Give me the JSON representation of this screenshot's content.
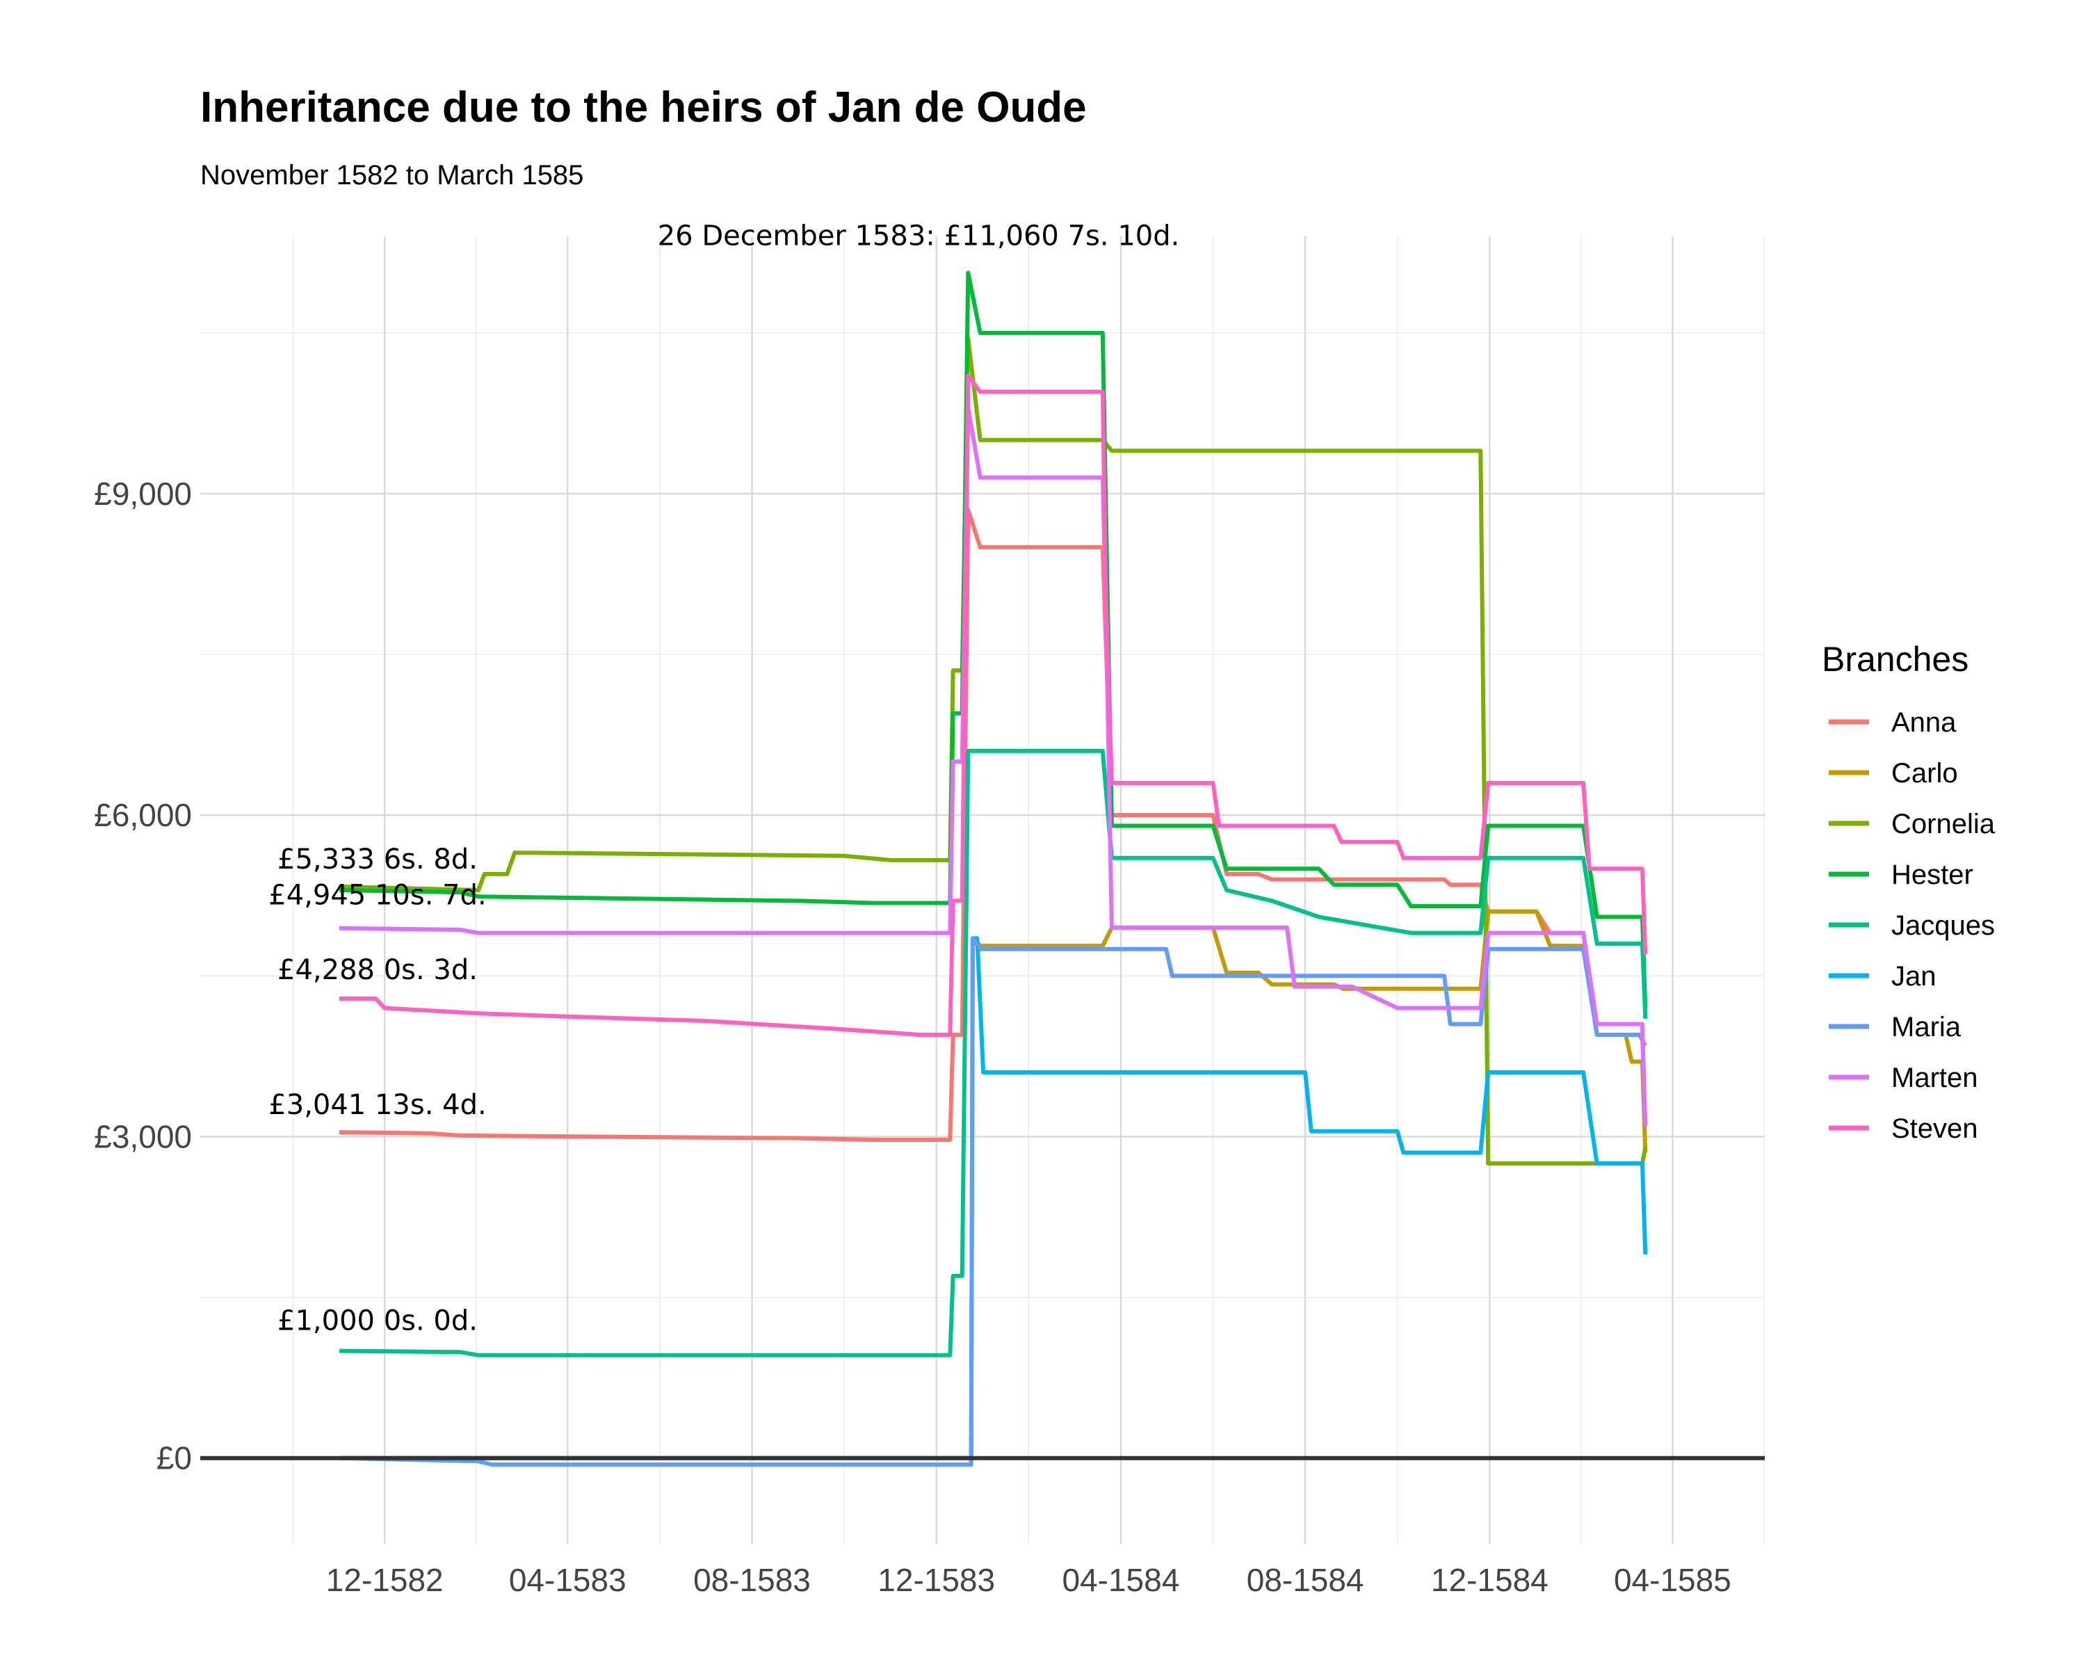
{
  "chart_data": {
    "type": "line",
    "title": "Inheritance due to the heirs of Jan de Oude",
    "subtitle": "November 1582 to March 1585",
    "xlabel": "",
    "ylabel": "",
    "x_type": "date",
    "xlim": [
      "1582-08-01",
      "1585-06-01"
    ],
    "ylim": [
      -800,
      11400
    ],
    "x_ticks": [
      {
        "date": "1582-12-01",
        "label": "12-1582"
      },
      {
        "date": "1583-04-01",
        "label": "04-1583"
      },
      {
        "date": "1583-08-01",
        "label": "08-1583"
      },
      {
        "date": "1583-12-01",
        "label": "12-1583"
      },
      {
        "date": "1584-04-01",
        "label": "04-1584"
      },
      {
        "date": "1584-08-01",
        "label": "08-1584"
      },
      {
        "date": "1584-12-01",
        "label": "12-1584"
      },
      {
        "date": "1585-04-01",
        "label": "04-1585"
      }
    ],
    "y_ticks": [
      {
        "value": 0,
        "label": "£0"
      },
      {
        "value": 3000,
        "label": "£3,000"
      },
      {
        "value": 6000,
        "label": "£6,000"
      },
      {
        "value": 9000,
        "label": "£9,000"
      }
    ],
    "grid": true,
    "zero_line": true,
    "legend": {
      "title": "Branches",
      "position": "right"
    },
    "annotations": [
      {
        "text": "26 December 1583: £11,060 7s. 10d.",
        "date": "1583-12-26",
        "value": 11060
      },
      {
        "text": "£5,333 6s. 8d.",
        "date": "1582-11-01",
        "value": 5333
      },
      {
        "text": "£4,945 10s. 7d.",
        "date": "1582-11-01",
        "value": 4945
      },
      {
        "text": "£4,288 0s. 3d.",
        "date": "1582-11-01",
        "value": 4288
      },
      {
        "text": "£3,041 13s. 4d.",
        "date": "1582-11-01",
        "value": 3041
      },
      {
        "text": "£1,000 0s. 0d.",
        "date": "1582-11-01",
        "value": 1000
      }
    ],
    "series": [
      {
        "name": "Anna",
        "color": "#F8766D",
        "points": [
          [
            "1582-11-01",
            3041
          ],
          [
            "1583-01-01",
            3030
          ],
          [
            "1583-01-20",
            3010
          ],
          [
            "1583-06-01",
            2995
          ],
          [
            "1583-09-01",
            2985
          ],
          [
            "1583-10-20",
            2970
          ],
          [
            "1583-12-10",
            2970
          ],
          [
            "1583-12-12",
            3950
          ],
          [
            "1583-12-18",
            3950
          ],
          [
            "1583-12-22",
            8850
          ],
          [
            "1583-12-30",
            8500
          ],
          [
            "1584-03-20",
            8500
          ],
          [
            "1584-03-26",
            6000
          ],
          [
            "1584-06-01",
            6000
          ],
          [
            "1584-06-10",
            5450
          ],
          [
            "1584-07-01",
            5450
          ],
          [
            "1584-07-10",
            5400
          ],
          [
            "1584-11-01",
            5400
          ],
          [
            "1584-11-05",
            5350
          ],
          [
            "1584-11-25",
            5350
          ],
          [
            "1584-11-30",
            5100
          ],
          [
            "1585-01-01",
            5100
          ],
          [
            "1585-01-10",
            4900
          ],
          [
            "1585-02-01",
            4900
          ],
          [
            "1585-02-10",
            3950
          ],
          [
            "1585-03-10",
            3950
          ],
          [
            "1585-03-14",
            3850
          ]
        ]
      },
      {
        "name": "Carlo",
        "color": "#C49A00",
        "points": [
          [
            "1582-11-01",
            0
          ],
          [
            "1583-12-24",
            0
          ],
          [
            "1583-12-25",
            4850
          ],
          [
            "1583-12-30",
            4780
          ],
          [
            "1584-03-20",
            4780
          ],
          [
            "1584-03-26",
            4950
          ],
          [
            "1584-06-01",
            4950
          ],
          [
            "1584-06-10",
            4530
          ],
          [
            "1584-07-01",
            4530
          ],
          [
            "1584-07-10",
            4420
          ],
          [
            "1584-08-20",
            4420
          ],
          [
            "1584-08-26",
            4380
          ],
          [
            "1584-11-25",
            4380
          ],
          [
            "1584-11-30",
            5100
          ],
          [
            "1585-01-01",
            5100
          ],
          [
            "1585-01-10",
            4780
          ],
          [
            "1585-02-01",
            4780
          ],
          [
            "1585-02-10",
            3950
          ],
          [
            "1585-03-01",
            3950
          ],
          [
            "1585-03-05",
            3700
          ],
          [
            "1585-03-12",
            3700
          ],
          [
            "1585-03-14",
            2850
          ]
        ]
      },
      {
        "name": "Cornelia",
        "color": "#7CAE00",
        "points": [
          [
            "1582-11-01",
            5333
          ],
          [
            "1583-02-01",
            5300
          ],
          [
            "1583-02-05",
            5450
          ],
          [
            "1583-02-20",
            5450
          ],
          [
            "1583-02-25",
            5650
          ],
          [
            "1583-10-01",
            5620
          ],
          [
            "1583-11-01",
            5580
          ],
          [
            "1583-12-10",
            5580
          ],
          [
            "1583-12-12",
            7350
          ],
          [
            "1583-12-18",
            7350
          ],
          [
            "1583-12-22",
            10450
          ],
          [
            "1583-12-30",
            9500
          ],
          [
            "1584-03-20",
            9500
          ],
          [
            "1584-03-26",
            9400
          ],
          [
            "1584-11-25",
            9400
          ],
          [
            "1584-11-30",
            2750
          ],
          [
            "1585-03-12",
            2750
          ],
          [
            "1585-03-14",
            2900
          ]
        ]
      },
      {
        "name": "Hester",
        "color": "#00BA38",
        "points": [
          [
            "1582-11-01",
            5300
          ],
          [
            "1583-01-20",
            5280
          ],
          [
            "1583-02-01",
            5240
          ],
          [
            "1583-09-01",
            5200
          ],
          [
            "1583-10-20",
            5180
          ],
          [
            "1583-12-10",
            5180
          ],
          [
            "1583-12-12",
            6950
          ],
          [
            "1583-12-18",
            6950
          ],
          [
            "1583-12-22",
            11060
          ],
          [
            "1583-12-30",
            10500
          ],
          [
            "1584-03-20",
            10500
          ],
          [
            "1584-03-26",
            5900
          ],
          [
            "1584-06-01",
            5900
          ],
          [
            "1584-06-10",
            5500
          ],
          [
            "1584-08-10",
            5500
          ],
          [
            "1584-08-20",
            5350
          ],
          [
            "1584-10-01",
            5350
          ],
          [
            "1584-10-10",
            5150
          ],
          [
            "1584-11-25",
            5150
          ],
          [
            "1584-11-30",
            5900
          ],
          [
            "1585-02-01",
            5900
          ],
          [
            "1585-02-10",
            5050
          ],
          [
            "1585-03-12",
            5050
          ],
          [
            "1585-03-14",
            4200
          ]
        ]
      },
      {
        "name": "Jacques",
        "color": "#00C08B",
        "points": [
          [
            "1582-11-01",
            1000
          ],
          [
            "1583-01-20",
            990
          ],
          [
            "1583-02-01",
            960
          ],
          [
            "1583-12-10",
            960
          ],
          [
            "1583-12-12",
            1700
          ],
          [
            "1583-12-18",
            1700
          ],
          [
            "1583-12-22",
            6600
          ],
          [
            "1584-03-20",
            6600
          ],
          [
            "1584-03-26",
            5600
          ],
          [
            "1584-06-01",
            5600
          ],
          [
            "1584-06-10",
            5300
          ],
          [
            "1584-07-10",
            5200
          ],
          [
            "1584-08-10",
            5050
          ],
          [
            "1584-10-10",
            4900
          ],
          [
            "1584-11-25",
            4900
          ],
          [
            "1584-11-30",
            5600
          ],
          [
            "1585-02-01",
            5600
          ],
          [
            "1585-02-10",
            4800
          ],
          [
            "1585-03-12",
            4800
          ],
          [
            "1585-03-14",
            4100
          ]
        ]
      },
      {
        "name": "Jan",
        "color": "#00B4EF",
        "points": [
          [
            "1582-11-01",
            0
          ],
          [
            "1583-12-24",
            0
          ],
          [
            "1583-12-25",
            4850
          ],
          [
            "1583-12-28",
            4850
          ],
          [
            "1584-01-01",
            3600
          ],
          [
            "1584-08-01",
            3600
          ],
          [
            "1584-08-05",
            3050
          ],
          [
            "1584-10-01",
            3050
          ],
          [
            "1584-10-05",
            2850
          ],
          [
            "1584-11-25",
            2850
          ],
          [
            "1584-11-30",
            3600
          ],
          [
            "1585-02-01",
            3600
          ],
          [
            "1585-02-10",
            2750
          ],
          [
            "1585-03-12",
            2750
          ],
          [
            "1585-03-14",
            1900
          ]
        ]
      },
      {
        "name": "Maria",
        "color": "#619CFF",
        "points": [
          [
            "1582-11-01",
            0
          ],
          [
            "1583-02-01",
            -30
          ],
          [
            "1583-02-10",
            -60
          ],
          [
            "1583-12-24",
            -60
          ],
          [
            "1583-12-25",
            4850
          ],
          [
            "1583-12-30",
            4750
          ],
          [
            "1584-05-01",
            4750
          ],
          [
            "1584-05-05",
            4500
          ],
          [
            "1584-11-01",
            4500
          ],
          [
            "1584-11-05",
            4050
          ],
          [
            "1584-11-25",
            4050
          ],
          [
            "1584-11-30",
            4750
          ],
          [
            "1585-02-01",
            4750
          ],
          [
            "1585-02-10",
            3950
          ],
          [
            "1585-03-12",
            3950
          ],
          [
            "1585-03-14",
            3100
          ]
        ]
      },
      {
        "name": "Marten",
        "color": "#DB72FB",
        "points": [
          [
            "1582-11-01",
            4945
          ],
          [
            "1583-01-20",
            4930
          ],
          [
            "1583-02-01",
            4900
          ],
          [
            "1583-12-10",
            4900
          ],
          [
            "1583-12-12",
            6500
          ],
          [
            "1583-12-18",
            6500
          ],
          [
            "1583-12-22",
            9800
          ],
          [
            "1583-12-30",
            9150
          ],
          [
            "1584-03-20",
            9150
          ],
          [
            "1584-03-22",
            8000
          ],
          [
            "1584-03-26",
            4950
          ],
          [
            "1584-07-20",
            4950
          ],
          [
            "1584-07-25",
            4400
          ],
          [
            "1584-09-01",
            4400
          ],
          [
            "1584-10-01",
            4200
          ],
          [
            "1584-11-25",
            4200
          ],
          [
            "1584-11-30",
            4900
          ],
          [
            "1585-02-01",
            4900
          ],
          [
            "1585-02-10",
            4050
          ],
          [
            "1585-03-12",
            4050
          ],
          [
            "1585-03-14",
            3100
          ]
        ]
      },
      {
        "name": "Steven",
        "color": "#FF61C3",
        "points": [
          [
            "1582-11-01",
            4288
          ],
          [
            "1582-11-25",
            4288
          ],
          [
            "1582-12-01",
            4200
          ],
          [
            "1583-02-01",
            4150
          ],
          [
            "1583-04-01",
            4120
          ],
          [
            "1583-07-01",
            4080
          ],
          [
            "1583-10-01",
            4000
          ],
          [
            "1583-11-20",
            3950
          ],
          [
            "1583-12-10",
            3950
          ],
          [
            "1583-12-12",
            5200
          ],
          [
            "1583-12-18",
            5200
          ],
          [
            "1583-12-22",
            10100
          ],
          [
            "1583-12-30",
            9950
          ],
          [
            "1584-03-20",
            9950
          ],
          [
            "1584-03-22",
            8100
          ],
          [
            "1584-03-26",
            6300
          ],
          [
            "1584-06-01",
            6300
          ],
          [
            "1584-06-05",
            5900
          ],
          [
            "1584-08-20",
            5900
          ],
          [
            "1584-08-25",
            5750
          ],
          [
            "1584-10-01",
            5750
          ],
          [
            "1584-10-05",
            5600
          ],
          [
            "1584-11-25",
            5600
          ],
          [
            "1584-11-30",
            6300
          ],
          [
            "1585-02-01",
            6300
          ],
          [
            "1585-02-05",
            5500
          ],
          [
            "1585-03-12",
            5500
          ],
          [
            "1585-03-14",
            4700
          ]
        ]
      }
    ]
  }
}
